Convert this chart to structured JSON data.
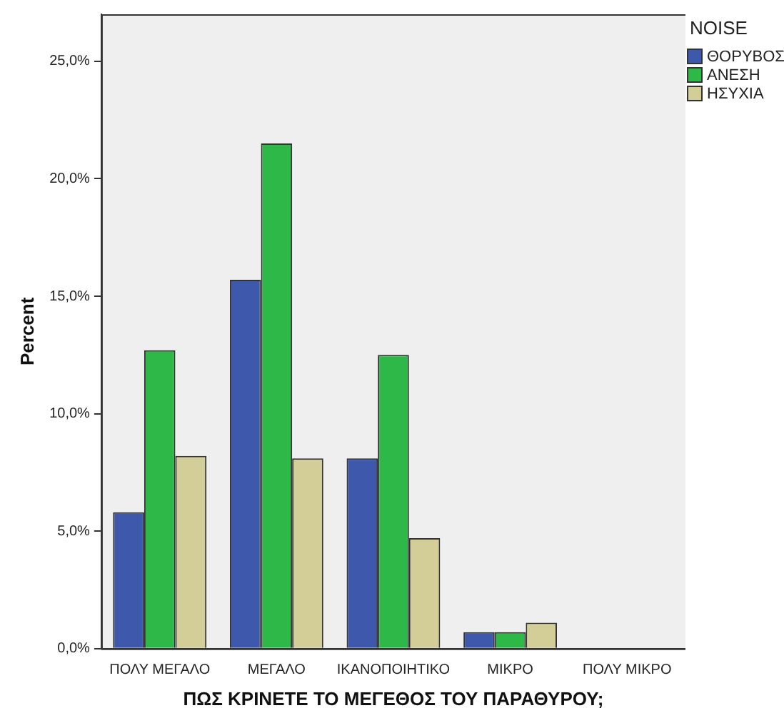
{
  "chart_data": {
    "type": "bar",
    "xlabel": "ΠΩΣ ΚΡΙΝΕΤΕ ΤΟ ΜΕΓΕΘΟΣ ΤΟΥ ΠΑΡΑΘΥΡΟΥ;",
    "ylabel": "Percent",
    "legend_title": "NOISE",
    "legend": "right",
    "categories": [
      "ΠΟΛΥ ΜΕΓΑΛΟ",
      "ΜΕΓΑΛΟ",
      "ΙΚΑΝΟΠΟΙΗΤΙΚΟ",
      "ΜΙΚΡΟ",
      "ΠΟΛΥ ΜΙΚΡΟ"
    ],
    "series": [
      {
        "name": "ΘΟΡΥΒΟΣ",
        "color": "#3e58ac",
        "values": [
          5.8,
          15.7,
          8.1,
          0.7,
          0
        ]
      },
      {
        "name": "ΑΝΕΣΗ",
        "color": "#2eb848",
        "values": [
          12.7,
          21.5,
          12.5,
          0.7,
          0
        ]
      },
      {
        "name": "ΗΣΥΧΙΑ",
        "color": "#d3ce97",
        "values": [
          8.2,
          8.1,
          4.7,
          1.1,
          0
        ]
      }
    ],
    "ylim": [
      0,
      27
    ],
    "yticks": [
      {
        "value": 0,
        "label": "0,0%"
      },
      {
        "value": 5,
        "label": "5,0%"
      },
      {
        "value": 10,
        "label": "10,0%"
      },
      {
        "value": 15,
        "label": "15,0%"
      },
      {
        "value": 20,
        "label": "20,0%"
      },
      {
        "value": 25,
        "label": "25,0%"
      }
    ],
    "grid": false
  }
}
